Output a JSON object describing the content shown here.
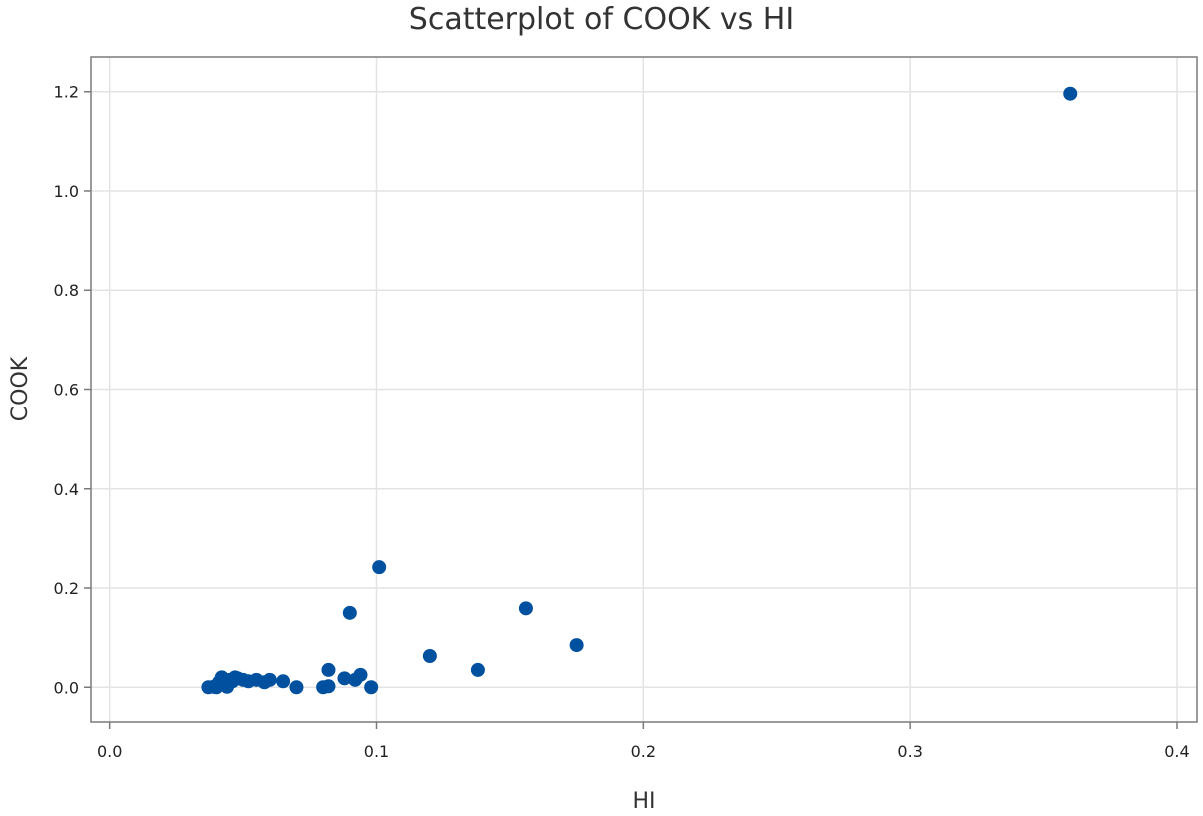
{
  "chart_data": {
    "type": "scatter",
    "title": "Scatterplot of COOK vs HI",
    "xlabel": "HI",
    "ylabel": "COOK",
    "xlim": [
      -0.007,
      0.4075
    ],
    "ylim": [
      -0.07,
      1.27
    ],
    "x_ticks": [
      0.0,
      0.1,
      0.2,
      0.3,
      0.4
    ],
    "x_tick_labels": [
      "0.0",
      "0.1",
      "0.2",
      "0.3",
      "0.4"
    ],
    "y_ticks": [
      0.0,
      0.2,
      0.4,
      0.6,
      0.8,
      1.0,
      1.2
    ],
    "y_tick_labels": [
      "0.0",
      "0.2",
      "0.4",
      "0.6",
      "0.8",
      "1.0",
      "1.2"
    ],
    "grid": true,
    "marker_color": "#0050a0",
    "series": [
      {
        "points": [
          [
            0.037,
            0.0
          ],
          [
            0.039,
            0.001
          ],
          [
            0.04,
            0.0
          ],
          [
            0.041,
            0.01
          ],
          [
            0.042,
            0.02
          ],
          [
            0.043,
            0.008
          ],
          [
            0.044,
            0.001
          ],
          [
            0.045,
            0.015
          ],
          [
            0.046,
            0.012
          ],
          [
            0.047,
            0.02
          ],
          [
            0.048,
            0.018
          ],
          [
            0.05,
            0.015
          ],
          [
            0.052,
            0.012
          ],
          [
            0.055,
            0.015
          ],
          [
            0.058,
            0.01
          ],
          [
            0.06,
            0.015
          ],
          [
            0.065,
            0.012
          ],
          [
            0.07,
            0.0
          ],
          [
            0.08,
            0.0
          ],
          [
            0.082,
            0.002
          ],
          [
            0.082,
            0.035
          ],
          [
            0.088,
            0.018
          ],
          [
            0.09,
            0.15
          ],
          [
            0.092,
            0.015
          ],
          [
            0.094,
            0.025
          ],
          [
            0.098,
            0.0
          ],
          [
            0.101,
            0.242
          ],
          [
            0.12,
            0.063
          ],
          [
            0.138,
            0.035
          ],
          [
            0.156,
            0.159
          ],
          [
            0.175,
            0.085
          ],
          [
            0.36,
            1.196
          ]
        ]
      }
    ]
  }
}
